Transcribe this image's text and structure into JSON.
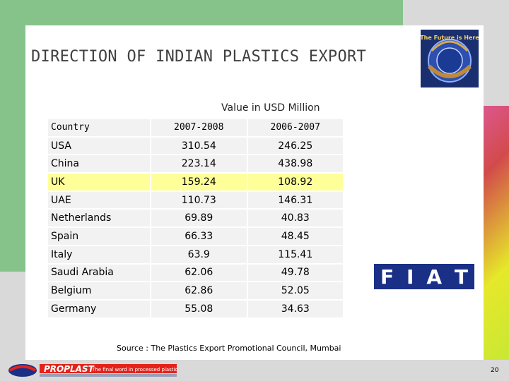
{
  "slide": {
    "title": "DIRECTION OF INDIAN PLASTICS EXPORT",
    "unit_note": "Value in  USD Million",
    "source": "Source : The Plastics Export Promotional Council, Mumbai",
    "page_number": "20"
  },
  "logos": {
    "top_right": "The Future is Here",
    "fiat": [
      "F",
      "I",
      "A",
      "T"
    ],
    "footer_brand": "PROPLAST",
    "footer_tagline": "The final word in processed plastics"
  },
  "table": {
    "headers": [
      "Country",
      "2007-2008",
      "2006-2007"
    ],
    "rows": [
      {
        "country": "USA",
        "y2007_08": "310.54",
        "y2006_07": "246.25"
      },
      {
        "country": "China",
        "y2007_08": "223.14",
        "y2006_07": "438.98"
      },
      {
        "country": "UK",
        "y2007_08": "159.24",
        "y2006_07": "108.92"
      },
      {
        "country": "UAE",
        "y2007_08": "110.73",
        "y2006_07": "146.31"
      },
      {
        "country": "Netherlands",
        "y2007_08": "69.89",
        "y2006_07": "40.83"
      },
      {
        "country": "Spain",
        "y2007_08": "66.33",
        "y2006_07": "48.45"
      },
      {
        "country": "Italy",
        "y2007_08": "63.9",
        "y2006_07": "115.41"
      },
      {
        "country": "Saudi Arabia",
        "y2007_08": "62.06",
        "y2006_07": "49.78"
      },
      {
        "country": "Belgium",
        "y2007_08": "62.86",
        "y2006_07": "52.05"
      },
      {
        "country": "Germany",
        "y2007_08": "55.08",
        "y2006_07": "34.63"
      }
    ],
    "highlight_color": "#ffff99"
  },
  "colors": {
    "green_block": "#86c38a",
    "fiat_blue": "#1a2f86",
    "footer_red": "#e2231a"
  }
}
